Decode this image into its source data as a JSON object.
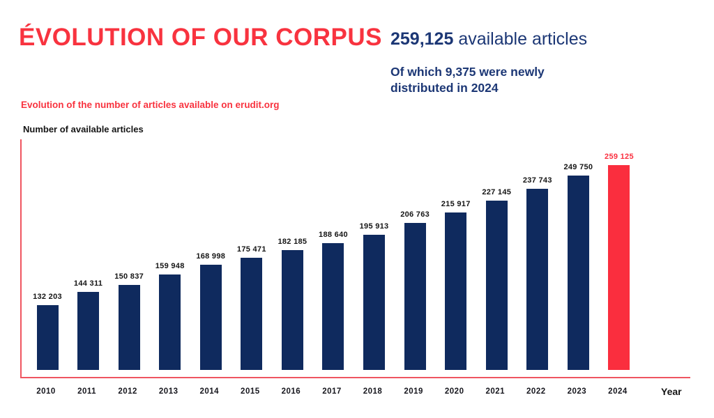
{
  "header": {
    "title": "ÉVOLUTION OF OUR CORPUS",
    "stat_number": "259,125",
    "stat_label": " available articles",
    "substat_line1": "Of which 9,375 were newly",
    "substat_line2": "distributed in 2024"
  },
  "chart_subtitle": "Evolution of the number of articles available on erudit.org",
  "axes": {
    "y_title": "Number of available articles",
    "x_title": "Year"
  },
  "colors": {
    "red_accent": "#F8333F",
    "highlight_bar_red": "#FA2E3E",
    "navy_bar": "#0F2A5E",
    "header_navy": "#1C3775",
    "axis_line_red": "#EF5560",
    "label_dark": "#141414"
  },
  "chart_data": {
    "type": "bar",
    "title": "Evolution of the number of articles available on erudit.org",
    "xlabel": "Year",
    "ylabel": "Number of available articles",
    "categories": [
      "2010",
      "2011",
      "2012",
      "2013",
      "2014",
      "2015",
      "2016",
      "2017",
      "2018",
      "2019",
      "2020",
      "2021",
      "2022",
      "2023",
      "2024"
    ],
    "values": [
      132203,
      144311,
      150837,
      159948,
      168998,
      175471,
      182185,
      188640,
      195913,
      206763,
      215917,
      227145,
      237743,
      249750,
      259125
    ],
    "value_labels": [
      "132 203",
      "144 311",
      "150 837",
      "159 948",
      "168 998",
      "175 471",
      "182 185",
      "188 640",
      "195 913",
      "206 763",
      "215 917",
      "227 145",
      "237 743",
      "249 750",
      "259 125"
    ],
    "highlight_index": 14,
    "highlight_label": "259 125",
    "ylim": [
      73600,
      290000
    ],
    "grid": false,
    "legend": false
  }
}
